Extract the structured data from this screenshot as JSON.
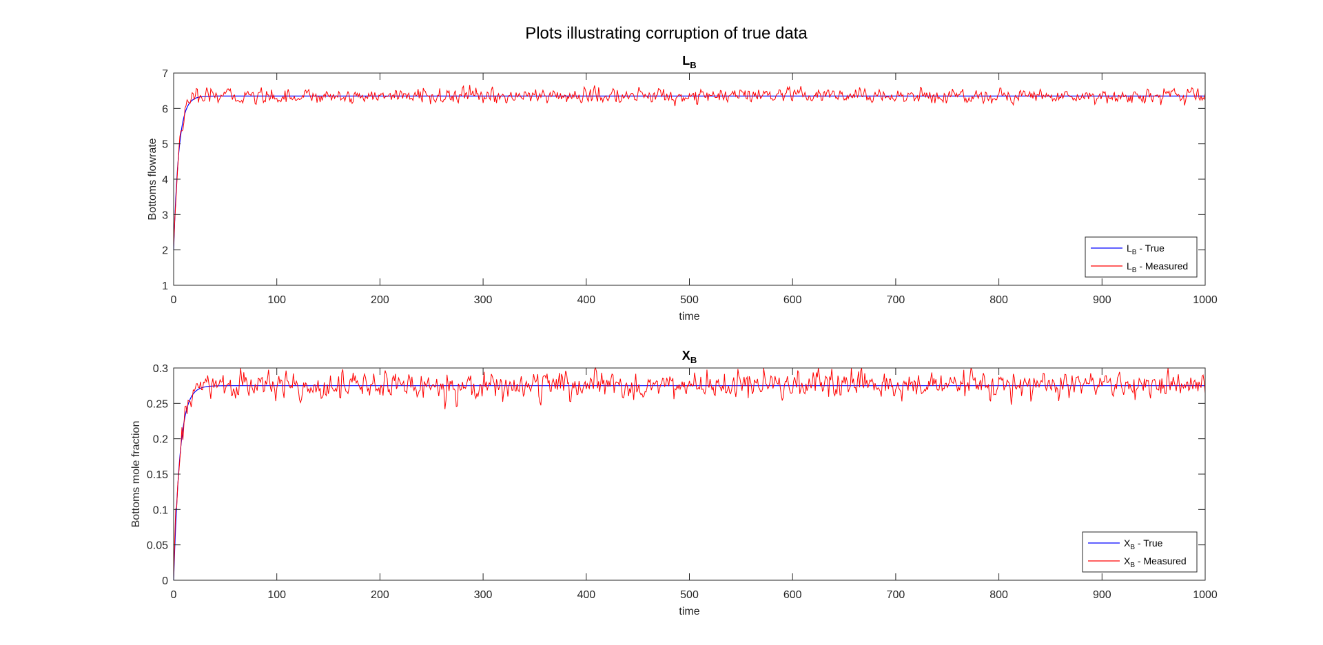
{
  "figure": {
    "suptitle": "Plots illustrating corruption of true data"
  },
  "chart_data": [
    {
      "type": "line",
      "title_main": "L",
      "title_sub": "B",
      "xlabel": "time",
      "ylabel": "Bottoms flowrate",
      "xlim": [
        0,
        1000
      ],
      "ylim": [
        1,
        7
      ],
      "xticks": [
        0,
        100,
        200,
        300,
        400,
        500,
        600,
        700,
        800,
        900,
        1000
      ],
      "yticks": [
        1,
        2,
        3,
        4,
        5,
        6,
        7
      ],
      "grid": false,
      "legend_placement": "bottom-right",
      "series": [
        {
          "legend_main": "L",
          "legend_sub": "B",
          "legend_suffix": " - True",
          "color": "#0000ff",
          "start": 2.0,
          "steady": 6.35,
          "tau": 5.0,
          "noise": 0.0
        },
        {
          "legend_main": "L",
          "legend_sub": "B",
          "legend_suffix": " - Measured",
          "color": "#ff0000",
          "start": 2.0,
          "steady": 6.35,
          "tau": 5.0,
          "noise": 0.1
        }
      ]
    },
    {
      "type": "line",
      "title_main": "X",
      "title_sub": "B",
      "xlabel": "time",
      "ylabel": "Bottoms mole fraction",
      "xlim": [
        0,
        1000
      ],
      "ylim": [
        0,
        0.3
      ],
      "xticks": [
        0,
        100,
        200,
        300,
        400,
        500,
        600,
        700,
        800,
        900,
        1000
      ],
      "yticks": [
        0,
        0.05,
        0.1,
        0.15,
        0.2,
        0.25,
        0.3
      ],
      "grid": false,
      "legend_placement": "bottom-right",
      "series": [
        {
          "legend_main": "X",
          "legend_sub": "B",
          "legend_suffix": " - True",
          "color": "#0000ff",
          "start": 0.0,
          "steady": 0.275,
          "tau": 6.0,
          "noise": 0.0
        },
        {
          "legend_main": "X",
          "legend_sub": "B",
          "legend_suffix": " - Measured",
          "color": "#ff0000",
          "start": 0.0,
          "steady": 0.275,
          "tau": 6.0,
          "noise": 0.009
        }
      ]
    }
  ]
}
